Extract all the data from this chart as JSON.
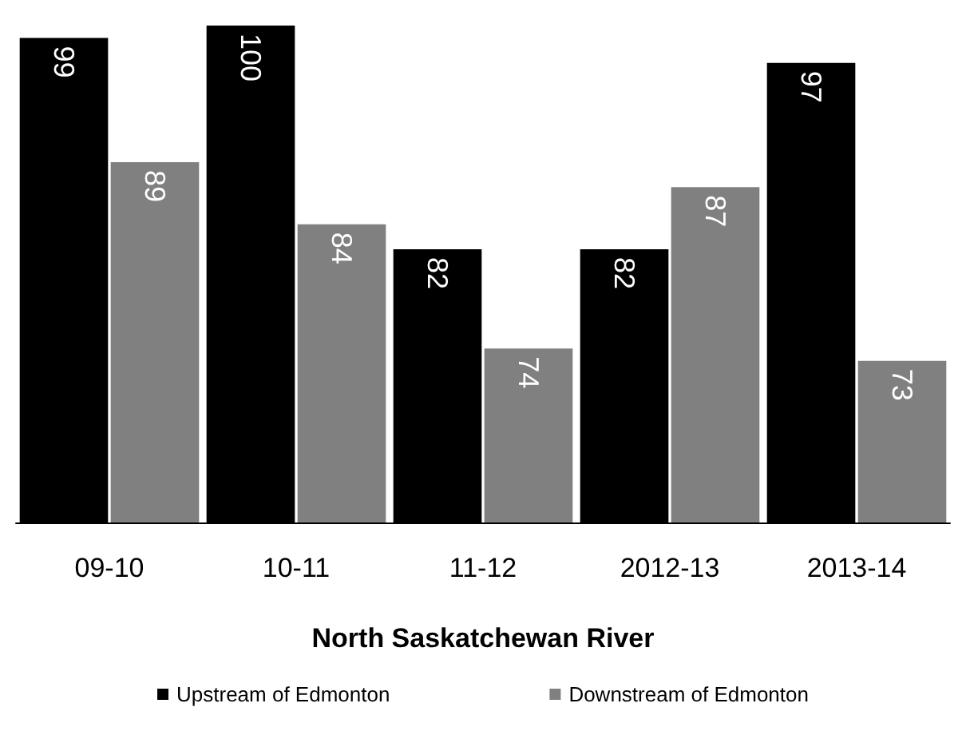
{
  "chart_data": {
    "type": "bar",
    "xlabel": "North Saskatchewan River",
    "categories": [
      "09-10",
      "10-11",
      "11-12",
      "2012-13",
      "2013-14"
    ],
    "series": [
      {
        "name": "Upstream of Edmonton",
        "color": "#000000",
        "values": [
          99,
          100,
          82,
          82,
          97
        ]
      },
      {
        "name": "Downstream of Edmonton",
        "color": "#808080",
        "values": [
          89,
          84,
          74,
          87,
          73
        ]
      }
    ],
    "ylim": [
      60,
      100
    ],
    "tick_labels": "x",
    "data_labels": true,
    "legend": "bottom",
    "grid": false
  }
}
